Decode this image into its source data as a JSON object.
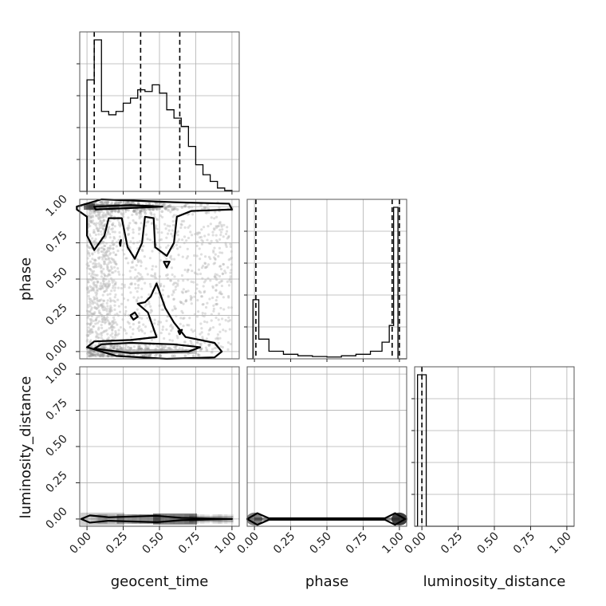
{
  "chart_data": {
    "type": "corner",
    "parameters": [
      "geocent_time",
      "phase",
      "luminosity_distance"
    ],
    "tick_labels": [
      "0.00",
      "0.25",
      "0.50",
      "0.75",
      "1.00"
    ],
    "axis_range": [
      -0.05,
      1.05
    ],
    "quantiles": {
      "geocent_time": [
        0.05,
        0.37,
        0.64
      ],
      "phase": [
        0.01,
        0.95,
        1.0
      ],
      "luminosity_distance": [
        0.0
      ]
    },
    "histograms": {
      "geocent_time": {
        "bin_edges": [
          -0.05,
          0.0,
          0.05,
          0.1,
          0.15,
          0.2,
          0.25,
          0.3,
          0.35,
          0.4,
          0.45,
          0.5,
          0.55,
          0.6,
          0.65,
          0.7,
          0.75,
          0.8,
          0.85,
          0.9,
          0.95,
          1.0
        ],
        "counts": [
          0,
          0.67,
          0.91,
          0.48,
          0.46,
          0.48,
          0.53,
          0.56,
          0.61,
          0.6,
          0.64,
          0.59,
          0.49,
          0.44,
          0.39,
          0.27,
          0.16,
          0.1,
          0.06,
          0.02,
          0.005
        ]
      },
      "phase": {
        "bin_edges": [
          -0.05,
          -0.01,
          0.03,
          0.1,
          0.2,
          0.3,
          0.4,
          0.5,
          0.6,
          0.7,
          0.8,
          0.88,
          0.93,
          0.96,
          0.99,
          1.05
        ],
        "counts": [
          0,
          0.39,
          0.13,
          0.05,
          0.03,
          0.02,
          0.015,
          0.012,
          0.02,
          0.03,
          0.05,
          0.11,
          0.22,
          1.0,
          0.0
        ]
      },
      "luminosity_distance": {
        "bin_edges": [
          -0.05,
          -0.03,
          0.03,
          1.05
        ],
        "counts": [
          0,
          1.0,
          0
        ]
      }
    }
  },
  "axes": {
    "x_labels": {
      "geocent_time": "geocent_time",
      "phase": "phase",
      "luminosity_distance": "luminosity_distance"
    },
    "y_labels": {
      "phase": "phase",
      "luminosity_distance": "luminosity_distance"
    }
  }
}
